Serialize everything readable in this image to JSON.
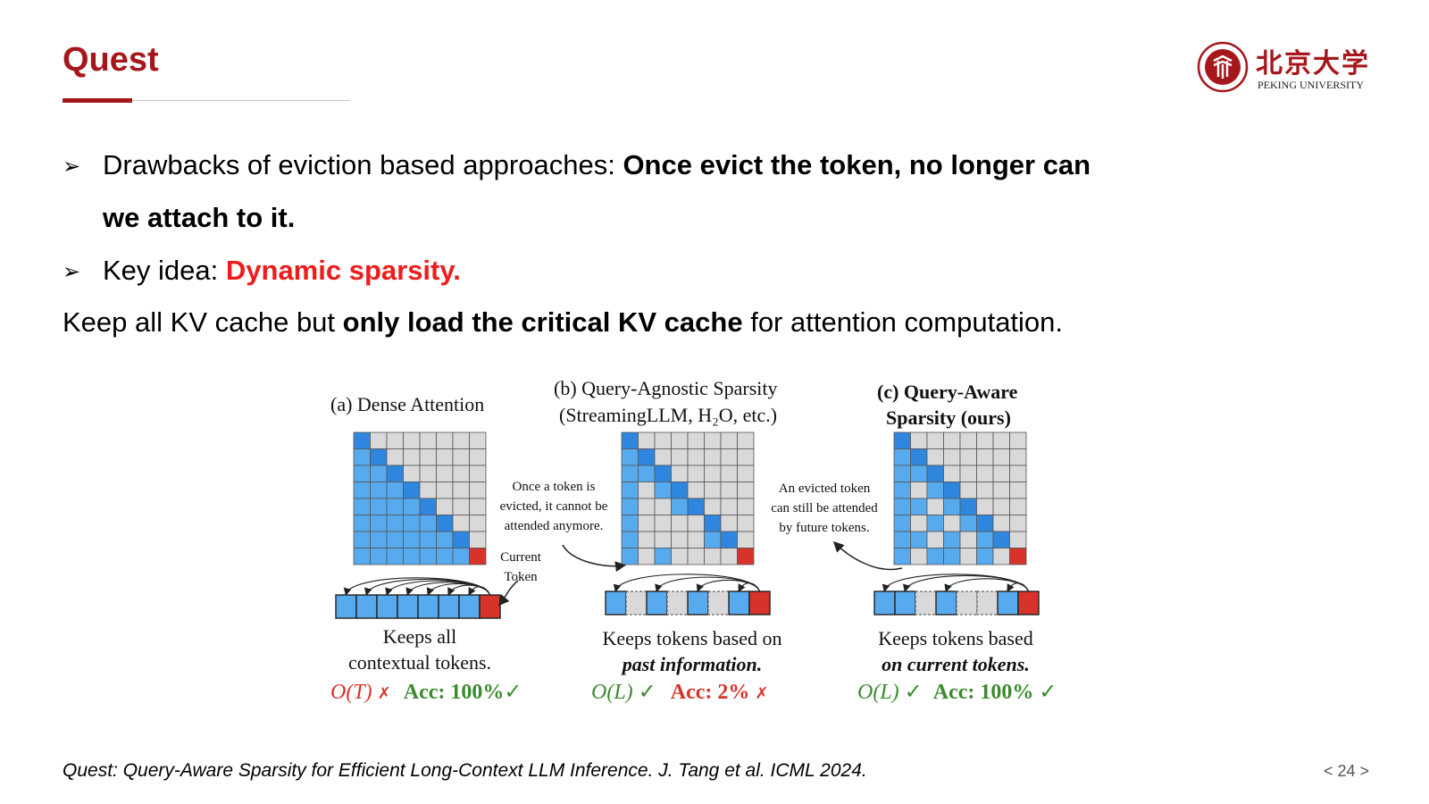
{
  "slide": {
    "title": "Quest",
    "logo": {
      "cn_text": "北京大学",
      "en_text": "PEKING UNIVERSITY",
      "icon": "peking-university-seal"
    },
    "bullets": [
      {
        "icon": "arrow-bullet",
        "glyph": "➢",
        "prefix": "Drawbacks of eviction based approaches: ",
        "emphasis": "Once evict the token, no longer can",
        "continuation": "we attach to it."
      },
      {
        "icon": "arrow-bullet",
        "glyph": "➢",
        "prefix": "Key idea: ",
        "emphasis": "Dynamic sparsity."
      }
    ],
    "statement": {
      "prefix": "Keep all KV cache but ",
      "emphasis": "only load the critical KV cache",
      "suffix": " for attention computation."
    },
    "citation": "Quest: Query-Aware Sparsity for Efficient Long-Context LLM Inference. J. Tang et al. ICML 2024.",
    "page_number": "< 24 >"
  },
  "figure": {
    "panels": [
      {
        "title": "(a) Dense Attention",
        "caption_line1": "Keeps all",
        "caption_line2": "contextual tokens.",
        "complexity": "O(T)",
        "complexity_mark": "✗",
        "accuracy": "Acc: 100%",
        "accuracy_mark": "✓"
      },
      {
        "title_line1": "(b) Query-Agnostic Sparsity",
        "title_line2": "(StreamingLLM, H₂O, etc.)",
        "caption_line1": "Keeps tokens based on",
        "caption_line2": "past information.",
        "complexity": "O(L)",
        "complexity_mark": "✓",
        "accuracy": "Acc: 2%",
        "accuracy_mark": "✗"
      },
      {
        "title_line1": "(c) Query-Aware",
        "title_line2": "Sparsity (ours)",
        "caption_line1": "Keeps tokens based",
        "caption_line2": "on current tokens.",
        "complexity": "O(L)",
        "complexity_mark": "✓",
        "accuracy": "Acc: 100%",
        "accuracy_mark": "✓"
      }
    ],
    "annotations": {
      "evicted_note_b": [
        "Once a token is",
        "evicted, it cannot be",
        "attended anymore."
      ],
      "current_token": [
        "Current",
        "Token"
      ],
      "evicted_note_c": [
        "An evicted token",
        "can still be attended",
        "by future tokens."
      ]
    },
    "colors": {
      "attended": "#58aaee",
      "diagonal": "#2f86de",
      "current": "#d8332a",
      "empty": "#d9d9d9",
      "good": "#3c8a2e",
      "bad": "#d8332a"
    }
  }
}
